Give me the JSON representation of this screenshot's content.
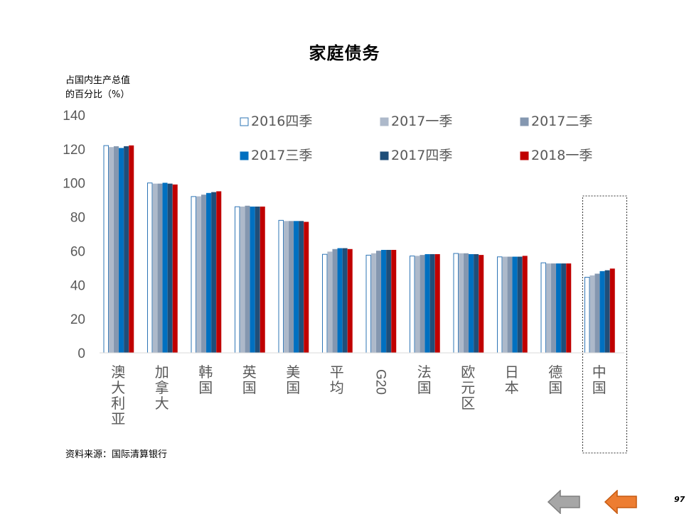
{
  "title": "家庭债务",
  "ylabel": "占国内生产总值\n的百分比（%）",
  "source": "资料来源：国际清算银行",
  "page_number": "97",
  "nav": {
    "prev_icon": "arrow-left-icon",
    "next_icon": "arrow-left-icon",
    "prev_color": "#a6a6a6",
    "next_color": "#ed7d31"
  },
  "chart_data": {
    "type": "bar",
    "title": "家庭债务",
    "ylabel": "占国内生产总值\n的百分比（%）",
    "ylim": [
      0,
      140
    ],
    "yticks": [
      0,
      20,
      40,
      60,
      80,
      100,
      120,
      140
    ],
    "grid": false,
    "legend_position": "top-right",
    "categories": [
      "澳大利亚",
      "加拿大",
      "韩国",
      "英国",
      "美国",
      "平均",
      "G20",
      "法国",
      "欧元区",
      "日本",
      "德国",
      "中国"
    ],
    "highlighted_category": "中国",
    "series": [
      {
        "name": "2016四季",
        "color": "#ffffff",
        "stroke": "#2e75b6",
        "values": [
          122,
          100,
          92,
          86,
          78,
          58,
          57.5,
          57,
          58.5,
          56.5,
          53,
          44.5
        ]
      },
      {
        "name": "2017一季",
        "color": "#adb9ca",
        "stroke": "#adb9ca",
        "values": [
          121,
          99.5,
          92,
          86,
          77.5,
          59.5,
          58.5,
          57,
          58.5,
          56.5,
          52.5,
          45.5
        ]
      },
      {
        "name": "2017二季",
        "color": "#8497b0",
        "stroke": "#8497b0",
        "values": [
          121.5,
          99.5,
          93,
          86.5,
          77.5,
          61,
          60,
          57.5,
          58.5,
          56.5,
          52.5,
          46.5
        ]
      },
      {
        "name": "2017三季",
        "color": "#0070c0",
        "stroke": "#0070c0",
        "values": [
          120.5,
          100,
          94,
          86,
          77.5,
          61.5,
          60.5,
          58,
          58,
          56.5,
          52.5,
          48
        ]
      },
      {
        "name": "2017四季",
        "color": "#1f4e79",
        "stroke": "#1f4e79",
        "values": [
          121.5,
          99.5,
          94.5,
          86,
          77.5,
          61.5,
          60.5,
          58,
          58,
          56.5,
          52.5,
          48.5
        ]
      },
      {
        "name": "2018一季",
        "color": "#c00000",
        "stroke": "#c00000",
        "values": [
          122,
          99,
          95,
          86,
          77,
          61,
          60.5,
          58,
          57.5,
          57,
          52.5,
          49.5
        ]
      }
    ]
  }
}
